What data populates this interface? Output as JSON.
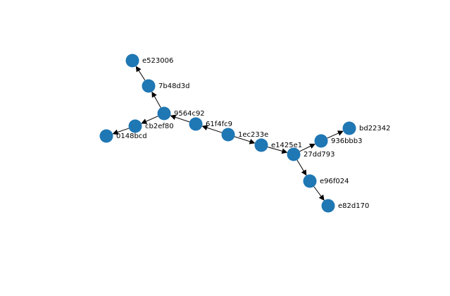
{
  "graph": {
    "directed": true,
    "node_color": "#1f77b4",
    "edge_color": "#000000",
    "label_color": "#000000",
    "nodes": [
      {
        "id": "1ec233e",
        "label": "1ec233e"
      },
      {
        "id": "61f4fc9",
        "label": "61f4fc9"
      },
      {
        "id": "9564c92",
        "label": "9564c92"
      },
      {
        "id": "cb2ef80",
        "label": "cb2ef80"
      },
      {
        "id": "0148bcd",
        "label": "0148bcd"
      },
      {
        "id": "7b48d3d",
        "label": "7b48d3d"
      },
      {
        "id": "e523006",
        "label": "e523006"
      },
      {
        "id": "e1425e1",
        "label": "e1425e1"
      },
      {
        "id": "27dd793",
        "label": "27dd793"
      },
      {
        "id": "936bbb3",
        "label": "936bbb3"
      },
      {
        "id": "bd22342",
        "label": "bd22342"
      },
      {
        "id": "e96f024",
        "label": "e96f024"
      },
      {
        "id": "e82d170",
        "label": "e82d170"
      }
    ],
    "edges": [
      {
        "source": "1ec233e",
        "target": "61f4fc9"
      },
      {
        "source": "61f4fc9",
        "target": "9564c92"
      },
      {
        "source": "9564c92",
        "target": "cb2ef80"
      },
      {
        "source": "cb2ef80",
        "target": "0148bcd"
      },
      {
        "source": "9564c92",
        "target": "7b48d3d"
      },
      {
        "source": "7b48d3d",
        "target": "e523006"
      },
      {
        "source": "1ec233e",
        "target": "e1425e1"
      },
      {
        "source": "e1425e1",
        "target": "27dd793"
      },
      {
        "source": "27dd793",
        "target": "936bbb3"
      },
      {
        "source": "936bbb3",
        "target": "bd22342"
      },
      {
        "source": "27dd793",
        "target": "e96f024"
      },
      {
        "source": "e96f024",
        "target": "e82d170"
      }
    ]
  }
}
